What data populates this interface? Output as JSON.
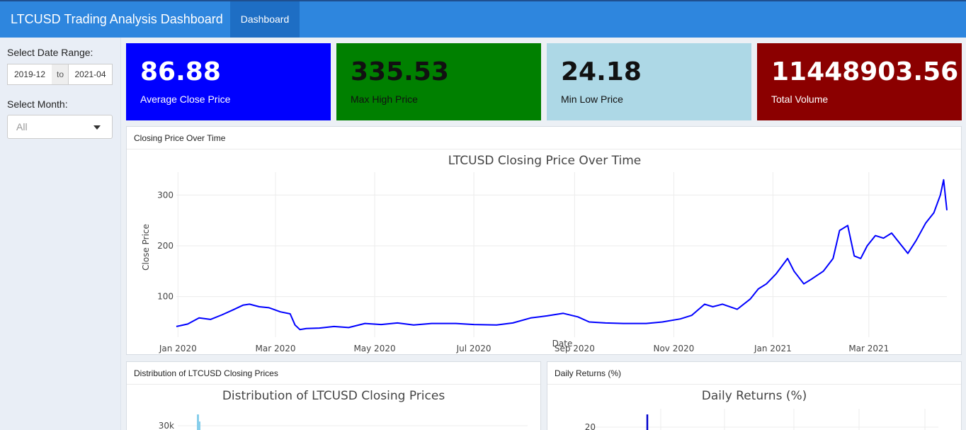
{
  "header": {
    "title": "LTCUSD Trading Analysis Dashboard",
    "tab": "Dashboard"
  },
  "sidebar": {
    "date_range_label": "Select Date Range:",
    "date_start": "2019-12",
    "date_separator": "to",
    "date_end": "2021-04",
    "month_label": "Select Month:",
    "month_value": "All"
  },
  "value_boxes": [
    {
      "value": "86.88",
      "label": "Average Close Price",
      "color": "#0000ff"
    },
    {
      "value": "335.53",
      "label": "Max High Price",
      "color": "#008000"
    },
    {
      "value": "24.18",
      "label": "Min Low Price",
      "color": "#add8e6"
    },
    {
      "value": "11448903.56",
      "label": "Total Volume",
      "color": "#8b0000"
    }
  ],
  "boxes": {
    "closing": {
      "header": "Closing Price Over Time"
    },
    "distribution": {
      "header": "Distribution of LTCUSD Closing Prices"
    },
    "returns": {
      "header": "Daily Returns (%)"
    }
  },
  "chart_data": [
    {
      "type": "line",
      "title": "LTCUSD Closing Price Over Time",
      "xlabel": "Date",
      "ylabel": "Close Price",
      "x_tick_labels": [
        "Jan 2020",
        "Mar 2020",
        "May 2020",
        "Jul 2020",
        "Sep 2020",
        "Nov 2020",
        "Jan 2021",
        "Mar 2021"
      ],
      "x_ticks": [
        "2020-01-01",
        "2020-03-01",
        "2020-05-01",
        "2020-07-01",
        "2020-09-01",
        "2020-11-01",
        "2021-01-01",
        "2021-03-01"
      ],
      "y_ticks": [
        100,
        200,
        300
      ],
      "xlim": [
        "2019-12-31",
        "2021-04-18"
      ],
      "ylim": [
        20,
        345
      ],
      "line_color": "#0000ff",
      "grid": true,
      "series": [
        {
          "x": [
            "2019-12-31",
            "2020-01-07",
            "2020-01-14",
            "2020-01-21",
            "2020-01-28",
            "2020-02-04",
            "2020-02-10",
            "2020-02-14",
            "2020-02-20",
            "2020-02-26",
            "2020-03-04",
            "2020-03-10",
            "2020-03-13",
            "2020-03-16",
            "2020-03-20",
            "2020-03-28",
            "2020-04-06",
            "2020-04-15",
            "2020-04-25",
            "2020-05-05",
            "2020-05-15",
            "2020-05-25",
            "2020-06-05",
            "2020-06-20",
            "2020-07-01",
            "2020-07-15",
            "2020-07-25",
            "2020-08-05",
            "2020-08-15",
            "2020-08-25",
            "2020-09-03",
            "2020-09-10",
            "2020-09-20",
            "2020-10-01",
            "2020-10-15",
            "2020-10-25",
            "2020-11-05",
            "2020-11-12",
            "2020-11-20",
            "2020-11-25",
            "2020-12-01",
            "2020-12-10",
            "2020-12-18",
            "2020-12-23",
            "2020-12-28",
            "2021-01-03",
            "2021-01-10",
            "2021-01-14",
            "2021-01-20",
            "2021-01-25",
            "2021-02-01",
            "2021-02-07",
            "2021-02-11",
            "2021-02-16",
            "2021-02-20",
            "2021-02-24",
            "2021-02-28",
            "2021-03-05",
            "2021-03-10",
            "2021-03-15",
            "2021-03-20",
            "2021-03-25",
            "2021-03-30",
            "2021-04-05",
            "2021-04-10",
            "2021-04-14",
            "2021-04-16",
            "2021-04-18"
          ],
          "y": [
            41,
            46,
            58,
            55,
            64,
            74,
            83,
            85,
            80,
            78,
            70,
            66,
            44,
            35,
            37,
            38,
            41,
            39,
            47,
            45,
            48,
            44,
            47,
            47,
            45,
            44,
            48,
            58,
            62,
            67,
            60,
            50,
            48,
            47,
            47,
            50,
            56,
            63,
            85,
            80,
            85,
            75,
            95,
            115,
            125,
            145,
            175,
            150,
            125,
            135,
            150,
            175,
            230,
            240,
            180,
            175,
            200,
            220,
            215,
            225,
            205,
            185,
            210,
            245,
            265,
            300,
            330,
            270
          ]
        }
      ]
    },
    {
      "type": "bar",
      "title": "Distribution of LTCUSD Closing Prices",
      "y_tick_labels": [
        "30k"
      ]
    },
    {
      "type": "line",
      "title": "Daily Returns (%)",
      "y_tick_labels": [
        "20"
      ]
    }
  ]
}
